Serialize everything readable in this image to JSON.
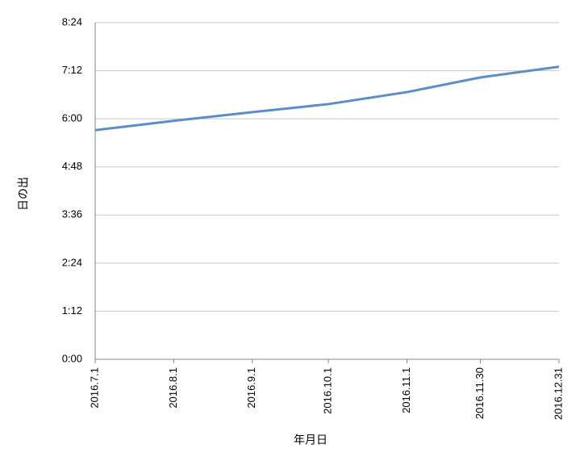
{
  "chart_data": {
    "type": "line",
    "x_label": "年月日",
    "y_label": "日の出",
    "categories": [
      "2016.7.1",
      "2016.8.1",
      "2016.9.1",
      "2016.10.1",
      "2016.11.1",
      "2016.11.30",
      "2016.12.31"
    ],
    "series": [
      {
        "name": "日の出",
        "color": "#5b8ec9",
        "values": [
          343,
          357,
          370,
          382,
          400,
          422,
          438
        ]
      }
    ],
    "ylim": [
      0,
      504
    ],
    "yticks": [
      {
        "value": 0,
        "label": "0:00"
      },
      {
        "value": 72,
        "label": "1:12"
      },
      {
        "value": 144,
        "label": "2:24"
      },
      {
        "value": 216,
        "label": "3:36"
      },
      {
        "value": 288,
        "label": "4:48"
      },
      {
        "value": 360,
        "label": "6:00"
      },
      {
        "value": 432,
        "label": "7:12"
      },
      {
        "value": 504,
        "label": "8:24"
      }
    ],
    "grid": true
  }
}
